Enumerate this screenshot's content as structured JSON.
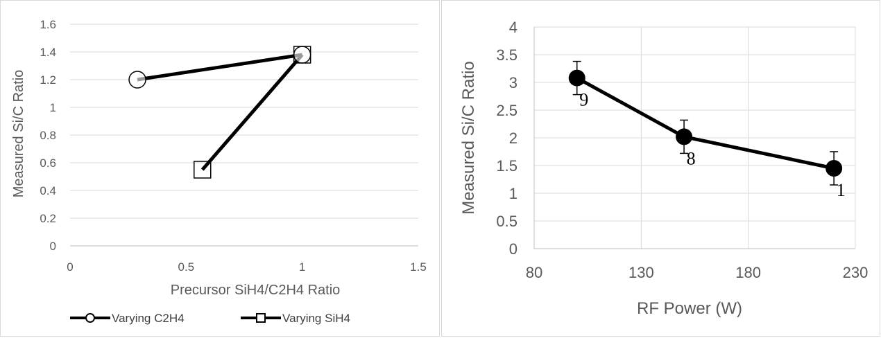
{
  "chart_data": [
    {
      "type": "line",
      "title": "",
      "xlabel": "Precursor SiH4/C2H4 Ratio",
      "ylabel": "Measured Si/C Ratio",
      "xlim": [
        0,
        1.5
      ],
      "ylim": [
        0,
        1.6
      ],
      "x_ticks": [
        "0",
        "0.5",
        "1",
        "1.5"
      ],
      "y_ticks": [
        "0",
        "0.2",
        "0.4",
        "0.6",
        "0.8",
        "1",
        "1.2",
        "1.4",
        "1.6"
      ],
      "grid": "horizontal",
      "legend": "bottom",
      "series": [
        {
          "name": "Varying C2H4",
          "marker": "circle",
          "color": "#000000",
          "x": [
            0.29,
            1.0
          ],
          "y": [
            1.2,
            1.38
          ]
        },
        {
          "name": "Varying SiH4",
          "marker": "square",
          "color": "#000000",
          "x": [
            0.57,
            1.0
          ],
          "y": [
            0.55,
            1.38
          ]
        }
      ]
    },
    {
      "type": "line",
      "title": "",
      "xlabel": "RF Power (W)",
      "ylabel": "Measured Si/C Ratio",
      "xlim": [
        80,
        230
      ],
      "ylim": [
        0,
        4
      ],
      "x_ticks": [
        "80",
        "130",
        "180",
        "230"
      ],
      "y_ticks": [
        "0",
        "0.5",
        "1",
        "1.5",
        "2",
        "2.5",
        "3",
        "3.5",
        "4"
      ],
      "grid": "both",
      "legend": "none",
      "series": [
        {
          "marker": "filled-circle",
          "color": "#000000",
          "x": [
            100,
            150,
            220
          ],
          "y": [
            3.08,
            2.02,
            1.45
          ],
          "error": [
            0.3,
            0.3,
            0.3
          ],
          "point_labels": [
            "9",
            "8",
            "1"
          ]
        }
      ]
    }
  ]
}
